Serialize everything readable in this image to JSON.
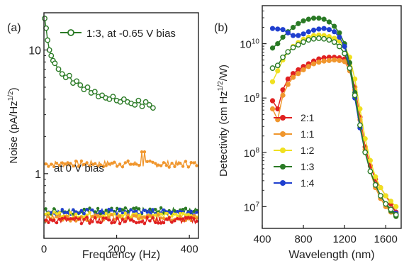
{
  "chart_data": [
    {
      "panel_label": "(a)",
      "type": "scatter",
      "xlabel": "Frequency (Hz)",
      "ylabel_main": "Noise (pA/Hz",
      "ylabel_sup": "1/2",
      "ylabel_close": ")",
      "y_scale": "log",
      "xlim": [
        0,
        425
      ],
      "ylim": [
        0.3,
        20
      ],
      "x_ticks": [
        0,
        200,
        400
      ],
      "y_ticks": [
        1,
        10
      ],
      "y_tick_labels": [
        "1",
        "10"
      ],
      "annotations": {
        "legend": "1:3, at -0.65 V bias",
        "bias0": "at 0 V bias"
      },
      "series": [
        {
          "name": "1:3, at -0.65 V bias",
          "color": "#2a7a25",
          "marker": "open-circle",
          "x": [
            2,
            6,
            10,
            15,
            20,
            25,
            30,
            40,
            50,
            60,
            70,
            80,
            90,
            100,
            110,
            120,
            130,
            140,
            150,
            160,
            170,
            180,
            190,
            200,
            210,
            220,
            230,
            240,
            250,
            260,
            270,
            280,
            290,
            300
          ],
          "y": [
            18,
            15,
            12,
            10,
            9,
            8.2,
            7.8,
            7,
            6.4,
            6,
            6.2,
            5.4,
            5.6,
            5.2,
            4.8,
            5,
            4.5,
            4.6,
            4.2,
            4.3,
            4.1,
            4,
            4.2,
            3.9,
            3.8,
            4,
            3.8,
            3.7,
            3.6,
            3.9,
            3.5,
            3.8,
            3.6,
            3.4
          ]
        },
        {
          "color": "#f0962d",
          "x_start": 5,
          "x_end": 420,
          "y_level": 1.2
        },
        {
          "color": "#2a7a25",
          "x_start": 5,
          "x_end": 420,
          "y_level": 0.5
        },
        {
          "color": "#1f3fcf",
          "x_start": 5,
          "x_end": 420,
          "y_level": 0.49
        },
        {
          "color": "#f0e020",
          "x_start": 5,
          "x_end": 420,
          "y_level": 0.46
        },
        {
          "color": "#f0962d",
          "x_start": 5,
          "x_end": 420,
          "y_level": 0.44
        },
        {
          "color": "#e02020",
          "x_start": 5,
          "x_end": 420,
          "y_level": 0.42
        }
      ]
    },
    {
      "panel_label": "(b)",
      "type": "line",
      "xlabel": "Wavelength (nm)",
      "ylabel_main": "Detectivity (cm Hz",
      "ylabel_sup": "1/2",
      "ylabel_close": "/W)",
      "y_scale": "log",
      "xlim": [
        400,
        1750
      ],
      "ylim_exp": [
        6.6,
        10.7
      ],
      "x_ticks": [
        400,
        800,
        1200,
        1600
      ],
      "y_ticks_exp": [
        7,
        8,
        9,
        10
      ],
      "legend_position": "lower-left",
      "series": [
        {
          "name": "2:1",
          "color": "#e02020",
          "x": [
            500,
            550,
            600,
            650,
            700,
            750,
            800,
            850,
            900,
            950,
            1000,
            1050,
            1100,
            1150,
            1200,
            1250,
            1300,
            1350,
            1400,
            1450,
            1500,
            1550,
            1600,
            1650,
            1700
          ],
          "log_y": [
            8.95,
            8.8,
            9.15,
            9.35,
            9.45,
            9.52,
            9.58,
            9.63,
            9.68,
            9.72,
            9.74,
            9.75,
            9.75,
            9.74,
            9.72,
            9.55,
            9.2,
            8.65,
            8.1,
            7.75,
            7.5,
            7.35,
            7.2,
            7.05,
            6.9
          ]
        },
        {
          "name": "1:1",
          "color": "#f0962d",
          "x": [
            500,
            550,
            600,
            650,
            700,
            750,
            800,
            850,
            900,
            950,
            1000,
            1050,
            1100,
            1150,
            1200,
            1250,
            1300,
            1350,
            1400,
            1450,
            1500,
            1550,
            1600,
            1650,
            1700
          ],
          "log_y": [
            8.8,
            8.6,
            9.05,
            9.25,
            9.38,
            9.45,
            9.52,
            9.58,
            9.63,
            9.66,
            9.68,
            9.69,
            9.7,
            9.69,
            9.67,
            9.5,
            9.15,
            8.6,
            8.05,
            7.65,
            7.35,
            7.15,
            7.0,
            6.9,
            6.82
          ]
        },
        {
          "name": "1:2",
          "color": "#f0e020",
          "x": [
            500,
            550,
            600,
            650,
            700,
            750,
            800,
            850,
            900,
            950,
            1000,
            1050,
            1100,
            1150,
            1200,
            1250,
            1300,
            1350,
            1400,
            1450,
            1500,
            1550,
            1600,
            1650,
            1700
          ],
          "log_y": [
            9.3,
            9.5,
            9.7,
            9.85,
            9.95,
            10.02,
            10.08,
            10.12,
            10.15,
            10.16,
            10.15,
            10.13,
            10.1,
            10.05,
            9.95,
            9.75,
            9.35,
            8.8,
            8.25,
            7.85,
            7.55,
            7.35,
            7.2,
            7.1,
            7.0
          ]
        },
        {
          "name": "1:3",
          "color": "#2a7a25",
          "x": [
            500,
            550,
            600,
            650,
            700,
            750,
            800,
            850,
            900,
            950,
            1000,
            1050,
            1100,
            1150,
            1200,
            1250,
            1300,
            1350,
            1400,
            1450,
            1500,
            1550,
            1600,
            1650,
            1700
          ],
          "log_y": [
            9.92,
            10.0,
            10.12,
            10.22,
            10.3,
            10.37,
            10.42,
            10.45,
            10.47,
            10.47,
            10.45,
            10.4,
            10.32,
            10.2,
            10.0,
            9.65,
            9.1,
            8.5,
            8.0,
            7.65,
            7.4,
            7.2,
            7.05,
            6.92,
            6.82
          ]
        },
        {
          "name": "1:4",
          "color": "#1f3fcf",
          "x": [
            500,
            550,
            600,
            650,
            700,
            750,
            800,
            850,
            900,
            950,
            1000,
            1050,
            1100,
            1150,
            1200,
            1250,
            1300,
            1350,
            1400,
            1450,
            1500,
            1550,
            1600,
            1650,
            1700
          ],
          "log_y": [
            10.28,
            10.27,
            10.26,
            10.2,
            10.15,
            10.15,
            10.18,
            10.22,
            10.25,
            10.27,
            10.28,
            10.26,
            10.22,
            10.12,
            9.95,
            9.55,
            9.0,
            8.45,
            8.0,
            7.65,
            7.4,
            7.2,
            7.05,
            6.95,
            6.88
          ]
        },
        {
          "name": "1:3 (open)",
          "color": "#2a7a25",
          "marker": "open-circle",
          "x": [
            500,
            550,
            600,
            650,
            700,
            750,
            800,
            850,
            900,
            950,
            1000,
            1050,
            1100,
            1150,
            1200,
            1250,
            1300,
            1350,
            1400,
            1450,
            1500,
            1550,
            1600,
            1650,
            1700
          ],
          "log_y": [
            9.55,
            9.6,
            9.75,
            9.85,
            9.93,
            9.98,
            10.03,
            10.07,
            10.09,
            10.1,
            10.09,
            10.07,
            10.03,
            9.95,
            9.82,
            9.55,
            9.05,
            8.5,
            8.0,
            7.65,
            7.4,
            7.2,
            7.05,
            6.95,
            6.85
          ]
        }
      ],
      "legend": [
        {
          "label": "2:1",
          "color": "#e02020"
        },
        {
          "label": "1:1",
          "color": "#f0962d"
        },
        {
          "label": "1:2",
          "color": "#f0e020"
        },
        {
          "label": "1:3",
          "color": "#2a7a25"
        },
        {
          "label": "1:4",
          "color": "#1f3fcf"
        }
      ]
    }
  ]
}
